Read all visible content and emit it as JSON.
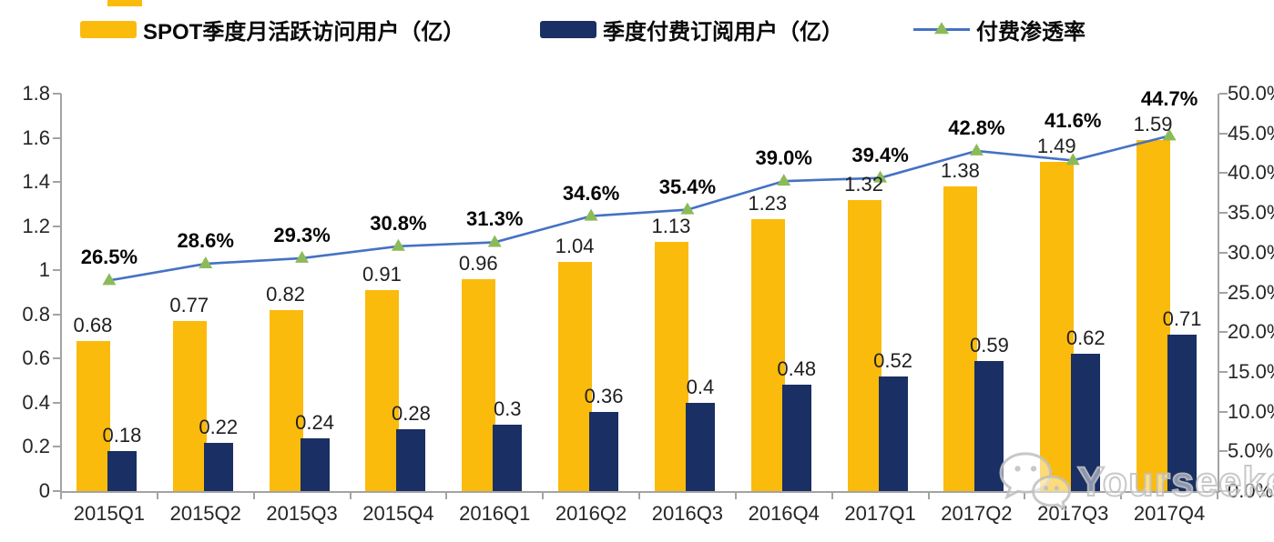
{
  "page": {
    "background": "#FFFFFF"
  },
  "colors": {
    "gold": "#FBBB0C",
    "navy": "#1A2F63",
    "line_blue": "#4472C4",
    "marker_green": "#8CBA59",
    "axis_gray": "#A3A3A3",
    "watermark_gray": "#C3C3C3"
  },
  "legend": [
    {
      "label": "SPOT季度月活跃访问用户（亿）",
      "swatch": "bar",
      "color": "#FBBB0C"
    },
    {
      "label": "季度付费订阅用户（亿）",
      "swatch": "bar",
      "color": "#1A2F63"
    },
    {
      "label": "付费渗透率",
      "swatch": "line",
      "color": "#4472C4",
      "marker_color": "#8CBA59"
    }
  ],
  "chart_data": {
    "type": "bar",
    "title": "",
    "xlabel": "",
    "ylabel": "",
    "grid": false,
    "legend_position": "top",
    "categories": [
      "2015Q1",
      "2015Q2",
      "2015Q3",
      "2015Q4",
      "2016Q1",
      "2016Q2",
      "2016Q3",
      "2016Q4",
      "2017Q1",
      "2017Q2",
      "2017Q3",
      "2017Q4"
    ],
    "series": [
      {
        "name": "SPOT季度月活跃访问用户（亿）",
        "type": "bar",
        "axis": "left",
        "color": "#FBBB0C",
        "values": [
          0.68,
          0.77,
          0.82,
          0.91,
          0.96,
          1.04,
          1.13,
          1.23,
          1.32,
          1.38,
          1.49,
          1.59
        ],
        "labels": [
          "0.68",
          "0.77",
          "0.82",
          "0.91",
          "0.96",
          "1.04",
          "1.13",
          "1.23",
          "1.32",
          "1.38",
          "1.49",
          "1.59"
        ]
      },
      {
        "name": "季度付费订阅用户（亿）",
        "type": "bar",
        "axis": "left",
        "color": "#1A2F63",
        "values": [
          0.18,
          0.22,
          0.24,
          0.28,
          0.3,
          0.36,
          0.4,
          0.48,
          0.52,
          0.59,
          0.62,
          0.71
        ],
        "labels": [
          "0.18",
          "0.22",
          "0.24",
          "0.28",
          "0.3",
          "0.36",
          "0.4",
          "0.48",
          "0.52",
          "0.59",
          "0.62",
          "0.71"
        ]
      },
      {
        "name": "付费渗透率",
        "type": "line",
        "axis": "right",
        "color": "#4472C4",
        "marker": "triangle",
        "marker_color": "#8CBA59",
        "values": [
          26.5,
          28.6,
          29.3,
          30.8,
          31.3,
          34.6,
          35.4,
          39.0,
          39.4,
          42.8,
          41.6,
          44.7
        ],
        "labels": [
          "26.5%",
          "28.6%",
          "29.3%",
          "30.8%",
          "31.3%",
          "34.6%",
          "35.4%",
          "39.0%",
          "39.4%",
          "42.8%",
          "41.6%",
          "44.7%"
        ]
      }
    ],
    "left_axis": {
      "min": 0,
      "max": 1.8,
      "tick_values": [
        1.8,
        1.6,
        1.4,
        1.2,
        1,
        0.8,
        0.6,
        0.4,
        0.2,
        0
      ],
      "tick_labels": [
        "1.8",
        "1.6",
        "1.4",
        "1.2",
        "1",
        "0.8",
        "0.6",
        "0.4",
        "0.2",
        "0"
      ]
    },
    "right_axis": {
      "min": 0,
      "max": 50,
      "tick_values": [
        50,
        45,
        40,
        35,
        30,
        25,
        20,
        15,
        10,
        5,
        0
      ],
      "tick_labels": [
        "50.0%",
        "45.0%",
        "40.0%",
        "35.0%",
        "30.0%",
        "25.0%",
        "20.0%",
        "15.0%",
        "10.0%",
        "5.0%",
        "0.0%"
      ]
    }
  },
  "watermark": {
    "text": "Yourseeker",
    "icon": "wechat-icon"
  }
}
